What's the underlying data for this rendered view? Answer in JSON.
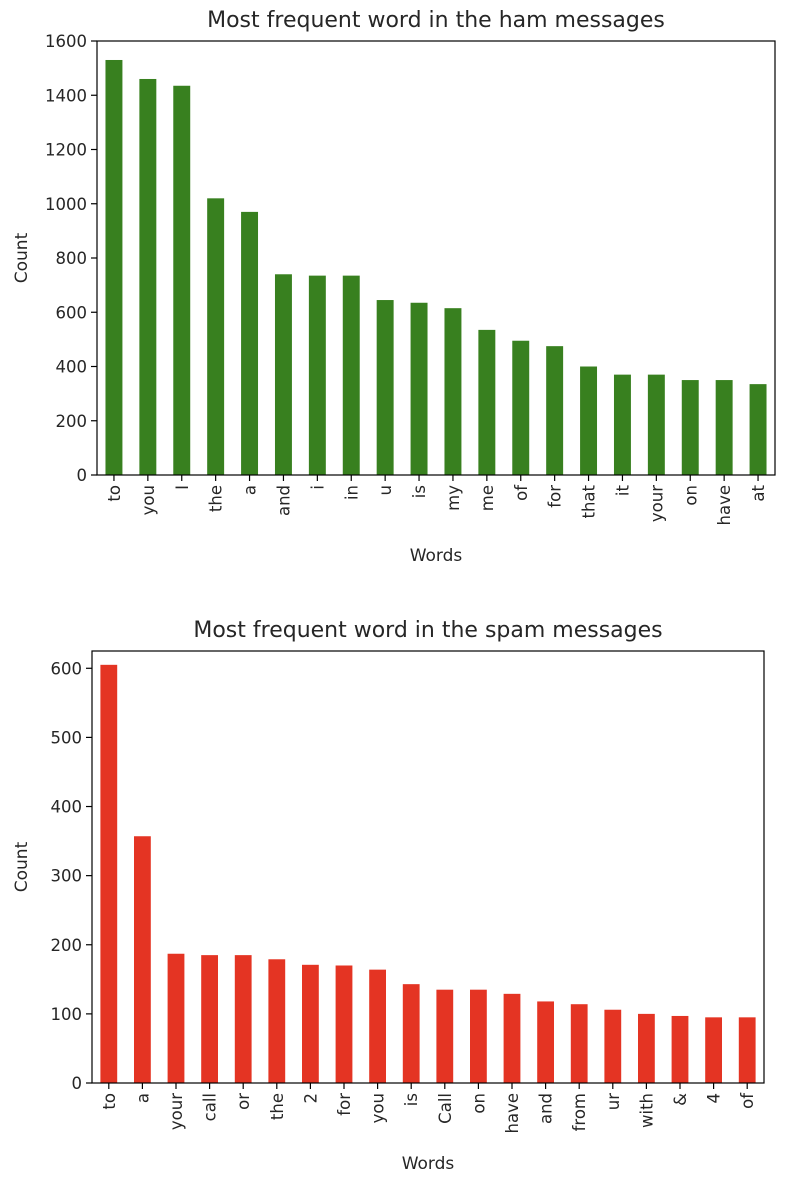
{
  "chart_data": [
    {
      "type": "bar",
      "title": "Most frequent word in the ham messages",
      "xlabel": "Words",
      "ylabel": "Count",
      "ylim": [
        0,
        1600
      ],
      "yticks": [
        0,
        200,
        400,
        600,
        800,
        1000,
        1200,
        1400,
        1600
      ],
      "grid": false,
      "bar_color": "#38801f",
      "categories": [
        "to",
        "you",
        "I",
        "the",
        "a",
        "and",
        "i",
        "in",
        "u",
        "is",
        "my",
        "me",
        "of",
        "for",
        "that",
        "it",
        "your",
        "on",
        "have",
        "at"
      ],
      "values": [
        1530,
        1460,
        1435,
        1020,
        970,
        740,
        735,
        735,
        645,
        635,
        615,
        535,
        495,
        475,
        400,
        370,
        370,
        350,
        350,
        335
      ]
    },
    {
      "type": "bar",
      "title": "Most frequent word in the spam messages",
      "xlabel": "Words",
      "ylabel": "Count",
      "ylim": [
        0,
        625
      ],
      "yticks": [
        0,
        100,
        200,
        300,
        400,
        500,
        600
      ],
      "grid": false,
      "bar_color": "#e43423",
      "categories": [
        "to",
        "a",
        "your",
        "call",
        "or",
        "the",
        "2",
        "for",
        "you",
        "is",
        "Call",
        "on",
        "have",
        "and",
        "from",
        "ur",
        "with",
        "&",
        "4",
        "of"
      ],
      "values": [
        605,
        357,
        187,
        185,
        185,
        179,
        171,
        170,
        164,
        143,
        135,
        135,
        129,
        118,
        114,
        106,
        100,
        97,
        95,
        95
      ]
    }
  ]
}
